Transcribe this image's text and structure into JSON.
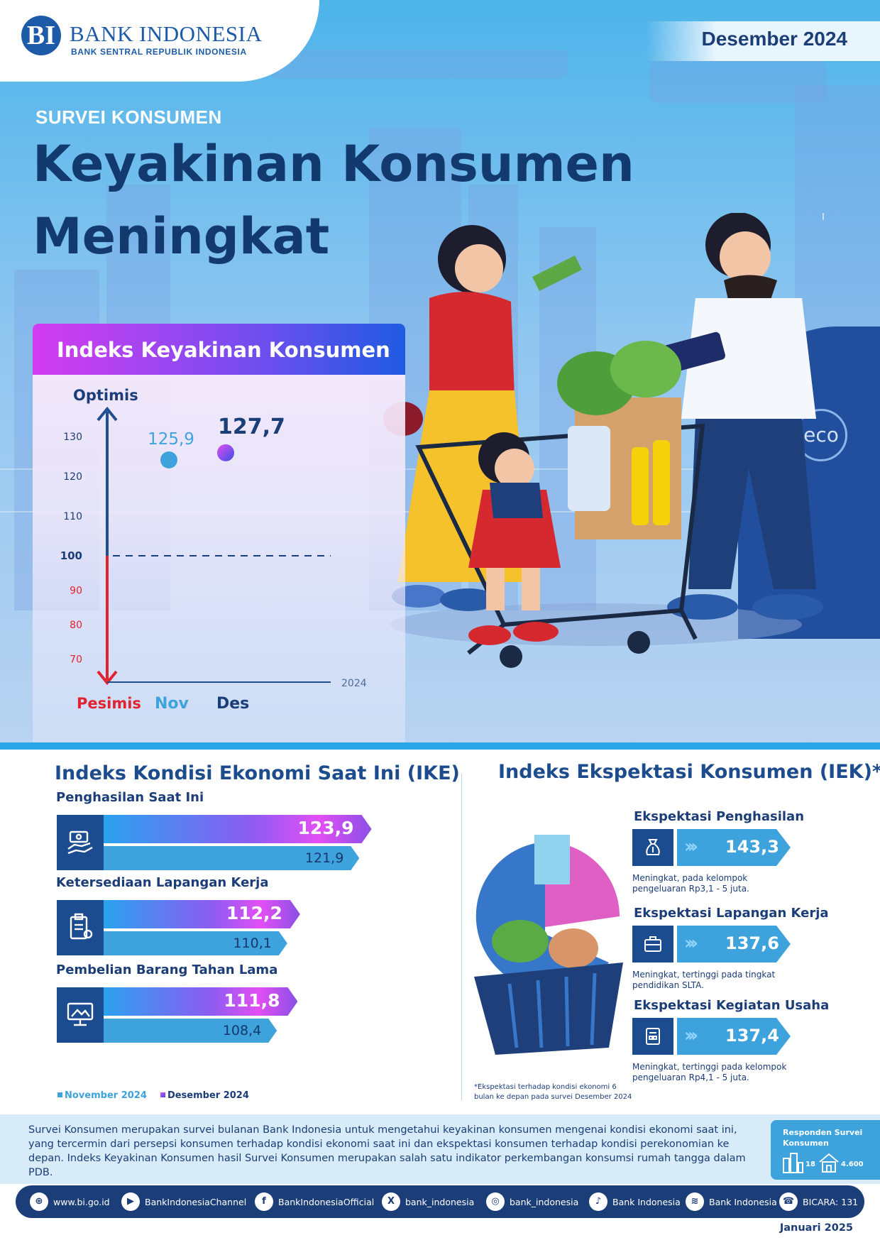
{
  "brand": {
    "name": "BANK INDONESIA",
    "tagline": "BANK SENTRAL REPUBLIK INDONESIA",
    "emblem": "BI",
    "color": "#1d5ba8"
  },
  "period": "Desember 2024",
  "hero": {
    "eyebrow": "SURVEI KONSUMEN",
    "headline_line1": "Keyakinan Konsumen",
    "headline_line2": "Meningkat"
  },
  "ikk": {
    "title": "Indeks Keyakinan Konsumen",
    "top_label": "Optimis",
    "bottom_label": "Pesimis",
    "year_label": "2024",
    "ticks": [
      "130",
      "120",
      "110",
      "100",
      "90",
      "80",
      "70"
    ],
    "threshold": 100,
    "points": [
      {
        "month": "Nov",
        "value": 125.9,
        "label": "125,9"
      },
      {
        "month": "Des",
        "value": 127.7,
        "label": "127,7"
      }
    ]
  },
  "ike": {
    "title": "Indeks Kondisi Ekonomi Saat Ini (IKE)",
    "items": [
      {
        "label": "Penghasilan Saat Ini",
        "icon": "money-hand-icon",
        "des": 123.9,
        "des_label": "123,9",
        "nov": 121.9,
        "nov_label": "121,9"
      },
      {
        "label": "Ketersediaan Lapangan Kerja",
        "icon": "clipboard-icon",
        "des": 112.2,
        "des_label": "112,2",
        "nov": 110.1,
        "nov_label": "110,1"
      },
      {
        "label": "Pembelian Barang Tahan Lama",
        "icon": "monitor-icon",
        "des": 111.8,
        "des_label": "111,8",
        "nov": 108.4,
        "nov_label": "108,4"
      }
    ],
    "legend": {
      "nov": "November 2024",
      "des": "Desember 2024",
      "nov_color": "#3ea2dc",
      "des_color": "#8a3cf0"
    }
  },
  "iek": {
    "title": "Indeks Ekspektasi Konsumen (IEK)*",
    "items": [
      {
        "label": "Ekspektasi Penghasilan",
        "icon": "money-bag-icon",
        "value": "143,3",
        "note": "Meningkat, pada kelompok pengeluaran Rp3,1 - 5 juta."
      },
      {
        "label": "Ekspektasi Lapangan Kerja",
        "icon": "briefcase-icon",
        "value": "137,6",
        "note": "Meningkat, tertinggi pada tingkat pendidikan SLTA."
      },
      {
        "label": "Ekspektasi Kegiatan Usaha",
        "icon": "shop-icon",
        "value": "137,4",
        "note": "Meningkat, tertinggi pada kelompok pengeluaran Rp4,1 - 5 juta."
      }
    ],
    "footnote": "*Ekspektasi terhadap kondisi ekonomi 6 bulan ke depan pada survei Desember 2024"
  },
  "footer": {
    "description": "Survei Konsumen merupakan survei bulanan Bank Indonesia untuk mengetahui keyakinan konsumen mengenai kondisi ekonomi saat ini, yang tercermin dari persepsi konsumen terhadap kondisi ekonomi saat ini dan ekspektasi konsumen terhadap kondisi perekonomian ke depan. Indeks Keyakinan Konsumen hasil Survei Konsumen merupakan salah satu indikator perkembangan konsumsi rumah tangga dalam PDB.",
    "respondents_label": "Responden Survei Konsumen",
    "cities": "18",
    "households": "4.600",
    "social": [
      {
        "icon": "globe-icon",
        "glyph": "⊕",
        "label": "www.bi.go.id"
      },
      {
        "icon": "youtube-icon",
        "glyph": "▶",
        "label": "BankIndonesiaChannel"
      },
      {
        "icon": "facebook-icon",
        "glyph": "f",
        "label": "BankIndonesiaOfficial"
      },
      {
        "icon": "x-icon",
        "glyph": "X",
        "label": "bank_indonesia"
      },
      {
        "icon": "instagram-icon",
        "glyph": "◎",
        "label": "bank_indonesia"
      },
      {
        "icon": "tiktok-icon",
        "glyph": "♪",
        "label": "Bank Indonesia"
      },
      {
        "icon": "spotify-icon",
        "glyph": "≋",
        "label": "Bank Indonesia"
      },
      {
        "icon": "bicara-icon",
        "glyph": "☎",
        "label": "BICARA: 131"
      }
    ],
    "release": "Januari 2025"
  }
}
